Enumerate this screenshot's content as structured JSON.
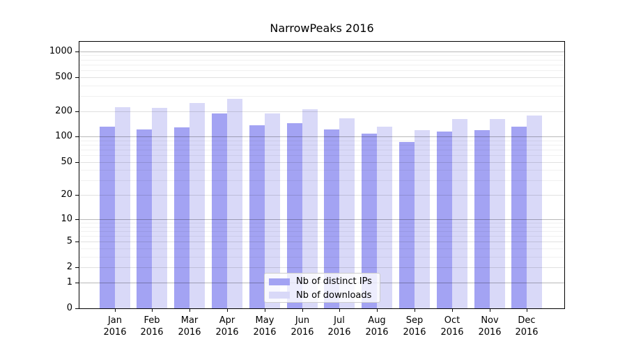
{
  "title": "NarrowPeaks 2016",
  "legend": {
    "items": [
      {
        "label": "Nb of distinct IPs",
        "color": "#a3a3f3"
      },
      {
        "label": "Nb of downloads",
        "color": "#d9d9f8"
      }
    ]
  },
  "x_axis": {
    "months": [
      "Jan",
      "Feb",
      "Mar",
      "Apr",
      "May",
      "Jun",
      "Jul",
      "Aug",
      "Sep",
      "Oct",
      "Nov",
      "Dec"
    ],
    "year": "2016"
  },
  "y_axis": {
    "tick_values": [
      0,
      1,
      2,
      5,
      10,
      20,
      50,
      100,
      200,
      500,
      1000
    ]
  },
  "chart_data": {
    "type": "bar",
    "title": "NarrowPeaks 2016",
    "categories": [
      "Jan 2016",
      "Feb 2016",
      "Mar 2016",
      "Apr 2016",
      "May 2016",
      "Jun 2016",
      "Jul 2016",
      "Aug 2016",
      "Sep 2016",
      "Oct 2016",
      "Nov 2016",
      "Dec 2016"
    ],
    "series": [
      {
        "name": "Nb of distinct IPs",
        "color": "#a3a3f3",
        "values": [
          131,
          122,
          129,
          187,
          135,
          143,
          122,
          108,
          87,
          115,
          120,
          130
        ]
      },
      {
        "name": "Nb of downloads",
        "color": "#d9d9f8",
        "values": [
          222,
          218,
          248,
          276,
          187,
          208,
          165,
          130,
          120,
          162,
          160,
          176
        ]
      }
    ],
    "xlabel": "",
    "ylabel": "",
    "yscale": "log1p",
    "ylim": [
      0,
      1292
    ],
    "yticks": [
      0,
      1,
      2,
      5,
      10,
      20,
      50,
      100,
      200,
      500,
      1000
    ],
    "grid": true,
    "legend_position": "lower center"
  }
}
